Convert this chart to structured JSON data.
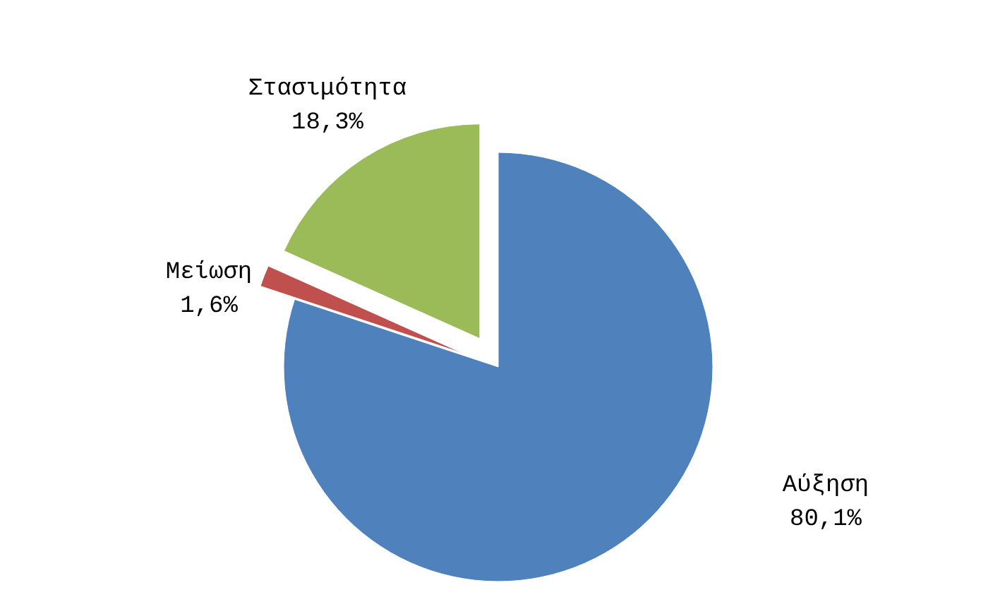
{
  "chart_data": {
    "type": "pie",
    "categories": [
      "Αύξηση",
      "Μείωση",
      "Στασιμότητα"
    ],
    "values": [
      80.1,
      1.6,
      18.3
    ],
    "colors": [
      "#4f81bd",
      "#c0504d",
      "#9bbb59"
    ],
    "value_labels": [
      "80,1%",
      "1,6%",
      "18,3%"
    ]
  }
}
